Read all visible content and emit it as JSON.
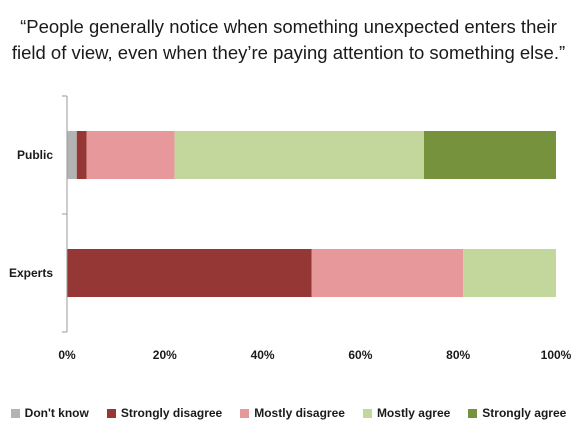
{
  "chart_data": {
    "type": "bar",
    "orientation": "horizontal",
    "stacked": "percent",
    "title_lines": [
      "“People generally notice when something unexpected enters their",
      "field of view, even when they’re paying attention to something else.”"
    ],
    "categories": [
      "Public",
      "Experts"
    ],
    "series": [
      {
        "name": "Don't know",
        "color": "#b3b3b3",
        "values": [
          2,
          0
        ]
      },
      {
        "name": "Strongly disagree",
        "color": "#953735",
        "values": [
          2,
          50
        ]
      },
      {
        "name": "Mostly disagree",
        "color": "#e6989a",
        "values": [
          18,
          31
        ]
      },
      {
        "name": "Mostly agree",
        "color": "#c3d69b",
        "values": [
          51,
          19
        ]
      },
      {
        "name": "Strongly agree",
        "color": "#76923c",
        "values": [
          27,
          0
        ]
      }
    ],
    "xlim": [
      0,
      100
    ],
    "xticks": [
      0,
      20,
      40,
      60,
      80,
      100
    ],
    "xtick_labels": [
      "0%",
      "20%",
      "40%",
      "60%",
      "80%",
      "100%"
    ],
    "grid": false,
    "legend": "bottom"
  }
}
